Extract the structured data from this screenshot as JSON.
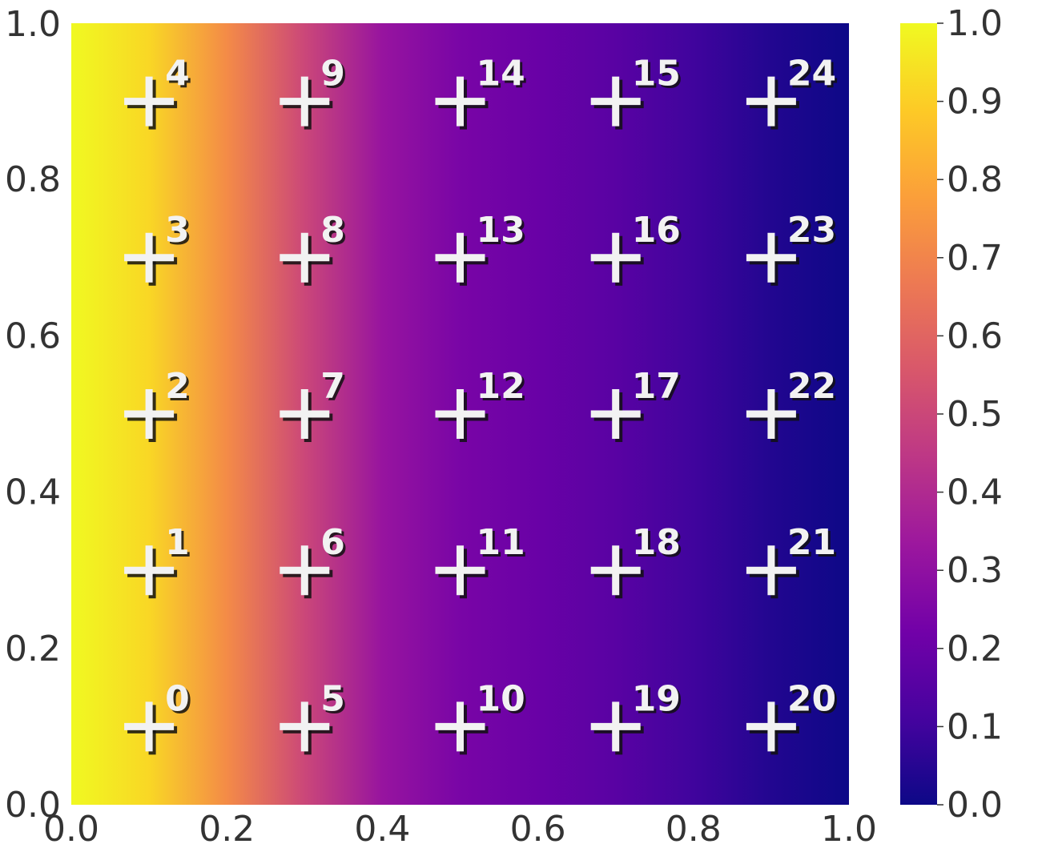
{
  "chart_data": {
    "type": "heatmap",
    "colormap": "plasma",
    "colors": {
      "plasma": [
        "#0d0887",
        "#46039f",
        "#7201a8",
        "#9c179e",
        "#bd3786",
        "#d8576b",
        "#ed7953",
        "#fb9f3a",
        "#fdca26",
        "#f0f921"
      ],
      "marker": "#f2f2f2",
      "shadow": "#111111",
      "text": "#333333"
    },
    "xlim": [
      0.0,
      1.0
    ],
    "ylim": [
      0.0,
      1.0
    ],
    "xticks": [
      "0.0",
      "0.2",
      "0.4",
      "0.6",
      "0.8",
      "1.0"
    ],
    "yticks": [
      "0.0",
      "0.2",
      "0.4",
      "0.6",
      "0.8",
      "1.0"
    ],
    "colorbar": {
      "range": [
        0.0,
        1.0
      ],
      "ticks": [
        "0.0",
        "0.1",
        "0.2",
        "0.3",
        "0.4",
        "0.5",
        "0.6",
        "0.7",
        "0.8",
        "0.9",
        "1.0"
      ]
    },
    "field_profile": [
      {
        "x": 0.0,
        "value": 1.0
      },
      {
        "x": 0.1,
        "value": 0.92
      },
      {
        "x": 0.2,
        "value": 0.72
      },
      {
        "x": 0.3,
        "value": 0.5
      },
      {
        "x": 0.4,
        "value": 0.32
      },
      {
        "x": 0.5,
        "value": 0.24
      },
      {
        "x": 0.6,
        "value": 0.2
      },
      {
        "x": 0.7,
        "value": 0.16
      },
      {
        "x": 0.8,
        "value": 0.1
      },
      {
        "x": 0.9,
        "value": 0.04
      },
      {
        "x": 1.0,
        "value": 0.0
      }
    ],
    "points": [
      {
        "label": "0",
        "x": 0.1,
        "y": 0.1
      },
      {
        "label": "1",
        "x": 0.1,
        "y": 0.3
      },
      {
        "label": "2",
        "x": 0.1,
        "y": 0.5
      },
      {
        "label": "3",
        "x": 0.1,
        "y": 0.7
      },
      {
        "label": "4",
        "x": 0.1,
        "y": 0.9
      },
      {
        "label": "5",
        "x": 0.3,
        "y": 0.1
      },
      {
        "label": "6",
        "x": 0.3,
        "y": 0.3
      },
      {
        "label": "7",
        "x": 0.3,
        "y": 0.5
      },
      {
        "label": "8",
        "x": 0.3,
        "y": 0.7
      },
      {
        "label": "9",
        "x": 0.3,
        "y": 0.9
      },
      {
        "label": "10",
        "x": 0.5,
        "y": 0.1
      },
      {
        "label": "11",
        "x": 0.5,
        "y": 0.3
      },
      {
        "label": "12",
        "x": 0.5,
        "y": 0.5
      },
      {
        "label": "13",
        "x": 0.5,
        "y": 0.7
      },
      {
        "label": "14",
        "x": 0.5,
        "y": 0.9
      },
      {
        "label": "15",
        "x": 0.7,
        "y": 0.9
      },
      {
        "label": "16",
        "x": 0.7,
        "y": 0.7
      },
      {
        "label": "17",
        "x": 0.7,
        "y": 0.5
      },
      {
        "label": "18",
        "x": 0.7,
        "y": 0.3
      },
      {
        "label": "19",
        "x": 0.7,
        "y": 0.1
      },
      {
        "label": "20",
        "x": 0.9,
        "y": 0.1
      },
      {
        "label": "21",
        "x": 0.9,
        "y": 0.3
      },
      {
        "label": "22",
        "x": 0.9,
        "y": 0.5
      },
      {
        "label": "23",
        "x": 0.9,
        "y": 0.7
      },
      {
        "label": "24",
        "x": 0.9,
        "y": 0.9
      }
    ]
  }
}
